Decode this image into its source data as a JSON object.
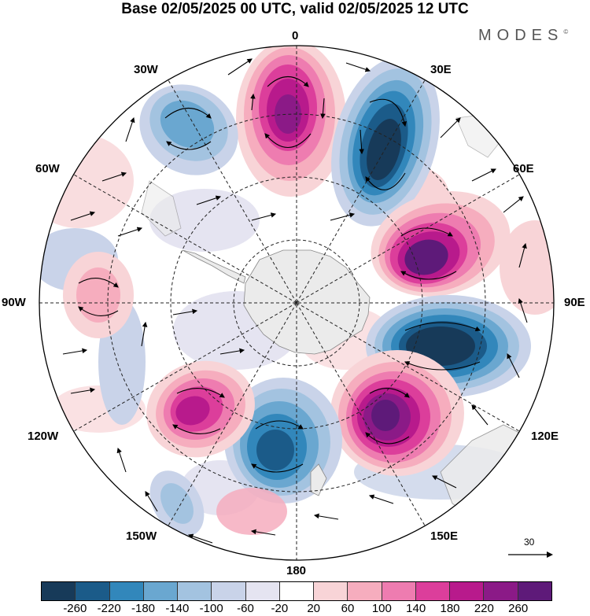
{
  "title": "Base 02/05/2025 00 UTC, valid 02/05/2025 12 UTC",
  "brand": "MODES",
  "brand_mark": "©",
  "longitude_labels": {
    "top": "0",
    "top_right": "30E",
    "right_upper": "60E",
    "right": "90E",
    "right_lower": "120E",
    "bottom_right": "150E",
    "bottom": "180",
    "bottom_left": "150W",
    "left_lower": "120W",
    "left": "90W",
    "left_upper": "60W",
    "top_left": "30W"
  },
  "reference_vector": {
    "value": "30"
  },
  "colorbar": {
    "colors": [
      "#173a59",
      "#1b5b89",
      "#3287bb",
      "#6aa7d0",
      "#a3c3e0",
      "#c9d3e9",
      "#e5e4f1",
      "#ffffff",
      "#f8d4d7",
      "#f6adbe",
      "#ee7cb0",
      "#dc3e9b",
      "#b81a8c",
      "#8b1a87",
      "#5e1a79"
    ],
    "tick_labels": [
      "-260",
      "-220",
      "-180",
      "-140",
      "-100",
      "-60",
      "-20",
      "20",
      "60",
      "100",
      "140",
      "180",
      "220",
      "260"
    ]
  },
  "anomaly_centers": [
    {
      "label": "positive-0E",
      "sign": "positive",
      "intensity": 260
    },
    {
      "label": "negative-30W",
      "sign": "negative",
      "intensity": -140
    },
    {
      "label": "negative-30E",
      "sign": "negative",
      "intensity": -260
    },
    {
      "label": "positive-60E",
      "sign": "positive",
      "intensity": 260
    },
    {
      "label": "negative-100E",
      "sign": "negative",
      "intensity": -260
    },
    {
      "label": "positive-140E",
      "sign": "positive",
      "intensity": 260
    },
    {
      "label": "negative-170W",
      "sign": "negative",
      "intensity": -220
    },
    {
      "label": "positive-140W",
      "sign": "positive",
      "intensity": 220
    },
    {
      "label": "positive-90W",
      "sign": "positive",
      "intensity": 100
    },
    {
      "label": "negative-150W",
      "sign": "negative",
      "intensity": -100
    }
  ]
}
